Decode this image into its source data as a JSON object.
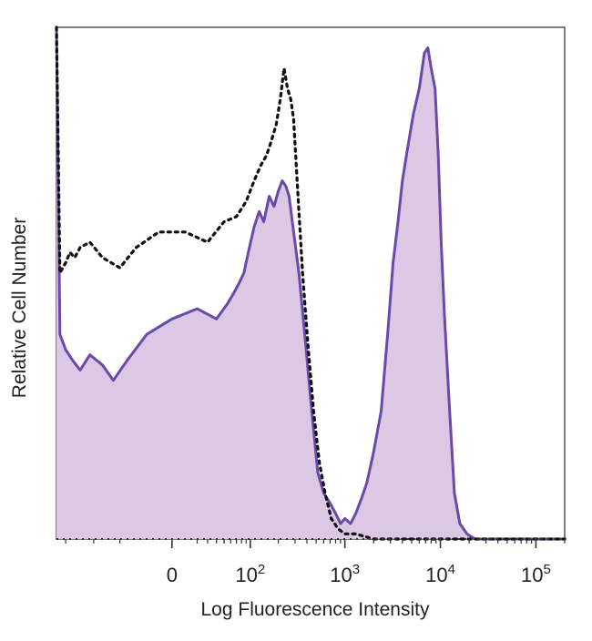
{
  "chart_data": {
    "type": "area",
    "title": "",
    "xlabel": "Log Fluorescence Intensity",
    "ylabel": "Relative Cell Number",
    "x_scale": "biexponential (log)",
    "x_ticks": [
      {
        "value": 0,
        "label": "0"
      },
      {
        "value": 100,
        "base": "10",
        "exp": "2"
      },
      {
        "value": 1000,
        "base": "10",
        "exp": "3"
      },
      {
        "value": 10000,
        "base": "10",
        "exp": "4"
      },
      {
        "value": 100000,
        "base": "10",
        "exp": "5"
      }
    ],
    "ylim": [
      0,
      100
    ],
    "grid": false,
    "legend": "none",
    "colors": {
      "stained_line": "#6a4aa8",
      "stained_fill": "#dcc8e4",
      "control_line": "#111111",
      "frame": "#555555"
    },
    "series": [
      {
        "style": "filled-solid",
        "points": [
          [
            -250,
            100
          ],
          [
            -230,
            40
          ],
          [
            -200,
            37
          ],
          [
            -170,
            35
          ],
          [
            -140,
            33
          ],
          [
            -110,
            36
          ],
          [
            -80,
            34
          ],
          [
            -60,
            31
          ],
          [
            -40,
            35
          ],
          [
            -20,
            40
          ],
          [
            0,
            43
          ],
          [
            20,
            45
          ],
          [
            40,
            43
          ],
          [
            55,
            46
          ],
          [
            65,
            48
          ],
          [
            75,
            50
          ],
          [
            85,
            52
          ],
          [
            95,
            56
          ],
          [
            110,
            61
          ],
          [
            125,
            64
          ],
          [
            140,
            62
          ],
          [
            160,
            67
          ],
          [
            180,
            65
          ],
          [
            200,
            68
          ],
          [
            220,
            70
          ],
          [
            240,
            69
          ],
          [
            260,
            67
          ],
          [
            290,
            60
          ],
          [
            330,
            52
          ],
          [
            380,
            40
          ],
          [
            450,
            25
          ],
          [
            520,
            13
          ],
          [
            600,
            9
          ],
          [
            700,
            7
          ],
          [
            800,
            5
          ],
          [
            900,
            3
          ],
          [
            1000,
            4
          ],
          [
            1150,
            3
          ],
          [
            1300,
            5
          ],
          [
            1500,
            8
          ],
          [
            1700,
            11
          ],
          [
            2000,
            17
          ],
          [
            2400,
            25
          ],
          [
            2800,
            40
          ],
          [
            3200,
            54
          ],
          [
            3600,
            62
          ],
          [
            4000,
            70
          ],
          [
            4500,
            76
          ],
          [
            5200,
            83
          ],
          [
            6000,
            88
          ],
          [
            6800,
            95
          ],
          [
            7400,
            96
          ],
          [
            8000,
            92
          ],
          [
            8800,
            88
          ],
          [
            9500,
            75
          ],
          [
            10200,
            58
          ],
          [
            11000,
            44
          ],
          [
            12500,
            25
          ],
          [
            14000,
            9
          ],
          [
            16000,
            3
          ],
          [
            19000,
            1
          ],
          [
            23000,
            0
          ],
          [
            100000,
            0
          ],
          [
            200000,
            0
          ]
        ]
      },
      {
        "style": "dotted",
        "points": [
          [
            -250,
            100
          ],
          [
            -230,
            52
          ],
          [
            -200,
            54
          ],
          [
            -180,
            56
          ],
          [
            -160,
            55
          ],
          [
            -140,
            57
          ],
          [
            -110,
            58
          ],
          [
            -80,
            55
          ],
          [
            -50,
            53
          ],
          [
            -30,
            57
          ],
          [
            -10,
            60
          ],
          [
            10,
            60
          ],
          [
            30,
            58
          ],
          [
            50,
            62
          ],
          [
            70,
            63
          ],
          [
            90,
            66
          ],
          [
            110,
            70
          ],
          [
            130,
            73
          ],
          [
            150,
            75
          ],
          [
            170,
            78
          ],
          [
            190,
            81
          ],
          [
            210,
            86
          ],
          [
            230,
            92
          ],
          [
            250,
            88
          ],
          [
            270,
            86
          ],
          [
            290,
            82
          ],
          [
            320,
            68
          ],
          [
            360,
            52
          ],
          [
            410,
            38
          ],
          [
            470,
            25
          ],
          [
            540,
            15
          ],
          [
            620,
            9
          ],
          [
            720,
            4
          ],
          [
            850,
            2
          ],
          [
            1000,
            1
          ],
          [
            1300,
            1
          ],
          [
            2000,
            0
          ],
          [
            100000,
            0
          ],
          [
            200000,
            0
          ]
        ]
      }
    ]
  }
}
